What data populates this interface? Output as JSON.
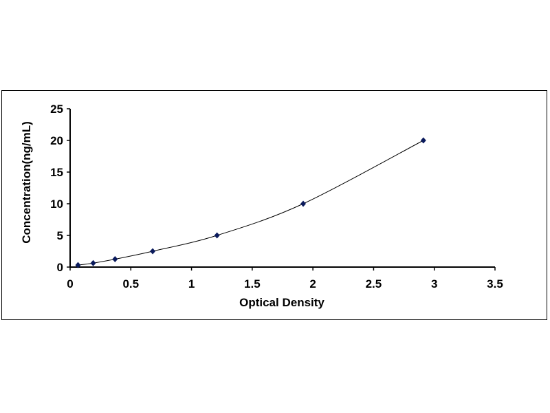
{
  "chart_data": {
    "type": "scatter",
    "title": "",
    "xlabel": "Optical Density",
    "ylabel": "Concentration(ng/mL)",
    "xlim": [
      0,
      3.5
    ],
    "ylim": [
      0,
      25
    ],
    "xticks": [
      "0",
      "0.5",
      "1",
      "1.5",
      "2",
      "2.5",
      "3",
      "3.5"
    ],
    "yticks": [
      "0",
      "5",
      "10",
      "15",
      "20",
      "25"
    ],
    "grid": false,
    "legend": "none",
    "marker": "diamond",
    "fit_line": "smooth curve",
    "color": "#0a1a5c",
    "series": [
      {
        "x": [
          0.065,
          0.19,
          0.37,
          0.68,
          1.21,
          1.92,
          2.91
        ],
        "y": [
          0.312,
          0.625,
          1.25,
          2.5,
          5,
          10,
          20
        ]
      }
    ]
  }
}
